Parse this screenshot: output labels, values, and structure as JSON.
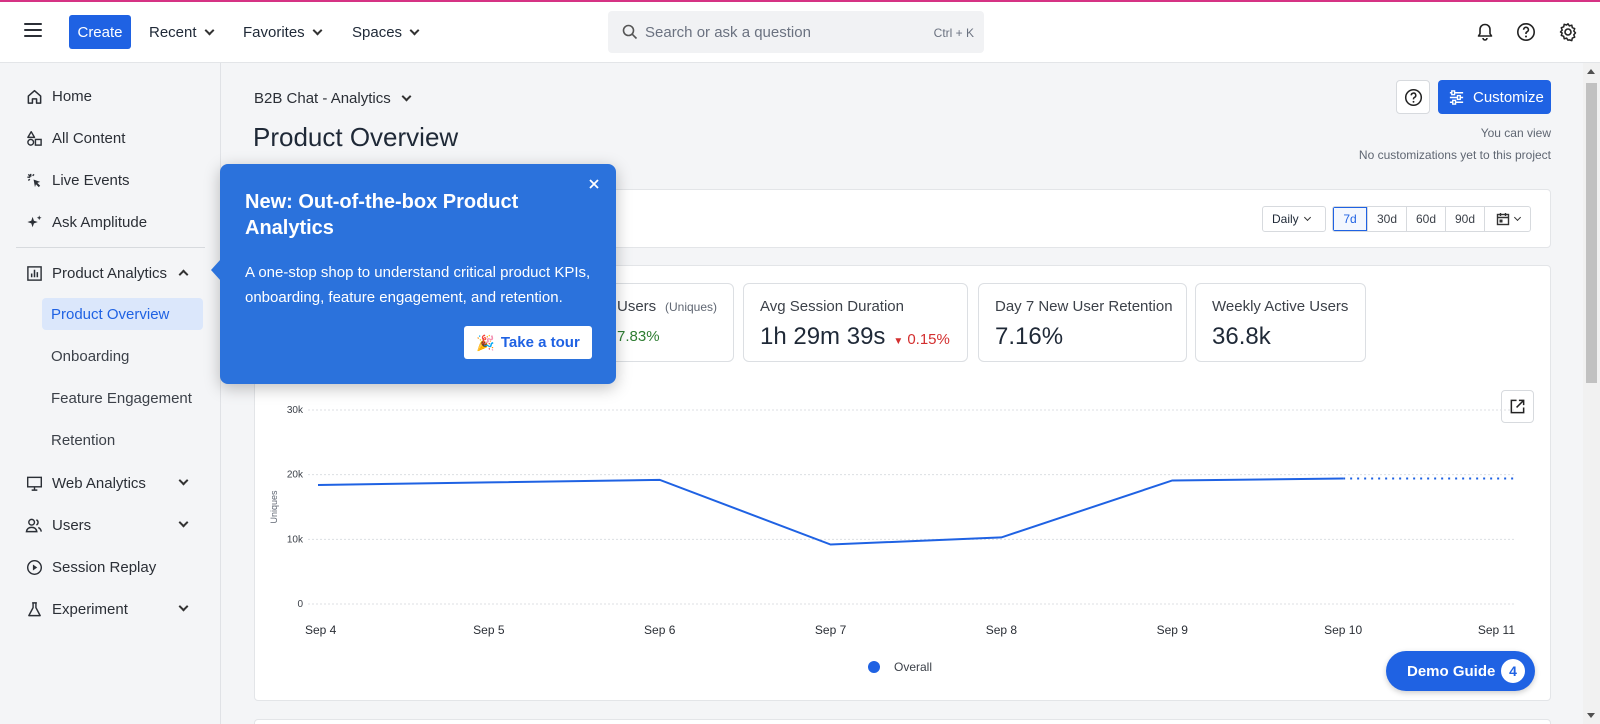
{
  "header": {
    "create_label": "Create",
    "menus": [
      "Recent",
      "Favorites",
      "Spaces"
    ],
    "search_placeholder": "Search or ask a question",
    "search_shortcut": "Ctrl + K",
    "icons": [
      "bell-icon",
      "help-icon",
      "gear-icon"
    ]
  },
  "sidebar": {
    "items": [
      {
        "label": "Home",
        "icon": "home-icon"
      },
      {
        "label": "All Content",
        "icon": "content-icon"
      },
      {
        "label": "Live Events",
        "icon": "live-events-icon"
      },
      {
        "label": "Ask Amplitude",
        "icon": "sparkle-icon"
      }
    ],
    "product_analytics": {
      "label": "Product Analytics",
      "icon": "bar-chart-icon",
      "expanded": true
    },
    "sub_items": [
      "Product Overview",
      "Onboarding",
      "Feature Engagement",
      "Retention"
    ],
    "active_sub_item": "Product Overview",
    "lower_items": [
      {
        "label": "Web Analytics",
        "icon": "monitor-icon",
        "collapsible": true
      },
      {
        "label": "Users",
        "icon": "users-icon",
        "collapsible": true
      },
      {
        "label": "Session Replay",
        "icon": "play-icon",
        "collapsible": false
      },
      {
        "label": "Experiment",
        "icon": "flask-icon",
        "collapsible": true
      }
    ]
  },
  "main": {
    "project": "B2B Chat - Analytics",
    "title": "Product Overview",
    "customize_label": "Customize",
    "permission_line1": "You can view",
    "permission_line2": "No customizations yet to this project",
    "granularity": "Daily",
    "ranges": [
      "7d",
      "30d",
      "60d",
      "90d"
    ],
    "active_range": "7d"
  },
  "kpis": [
    {
      "title": "Users",
      "qualifier": "(Uniques)",
      "delta": "7.83%",
      "delta_dir": "up"
    },
    {
      "title": "Avg Session Duration",
      "value": "1h 29m 39s",
      "delta": "0.15%",
      "delta_dir": "down"
    },
    {
      "title": "Day 7 New User Retention",
      "value": "7.16%"
    },
    {
      "title": "Weekly Active Users",
      "value": "36.8k"
    }
  ],
  "chart_data": {
    "type": "line",
    "x": [
      "Sep 4",
      "Sep 5",
      "Sep 6",
      "Sep 7",
      "Sep 8",
      "Sep 9",
      "Sep 10",
      "Sep 11"
    ],
    "series": [
      {
        "name": "Overall",
        "values": [
          18400,
          18800,
          19200,
          9200,
          10300,
          19100,
          19400,
          19400
        ],
        "projected_from_index": 6
      }
    ],
    "ylabel": "Uniques",
    "yticks": [
      "0",
      "10k",
      "20k",
      "30k"
    ],
    "ylim": [
      0,
      30000
    ],
    "grid": true,
    "legend": "bottom-center",
    "color": "#1f62e3"
  },
  "popover": {
    "title": "New: Out-of-the-box Product Analytics",
    "body": "A one-stop shop to understand critical product KPIs, onboarding, feature engagement, and retention.",
    "button_label": "Take a tour",
    "button_emoji": "🎉"
  },
  "demo_guide": {
    "label": "Demo Guide",
    "count": "4"
  },
  "colors": {
    "accent": "#1f62e3",
    "popover": "#2b72dc",
    "positive": "#2e7d32",
    "negative": "#d32f2f"
  }
}
